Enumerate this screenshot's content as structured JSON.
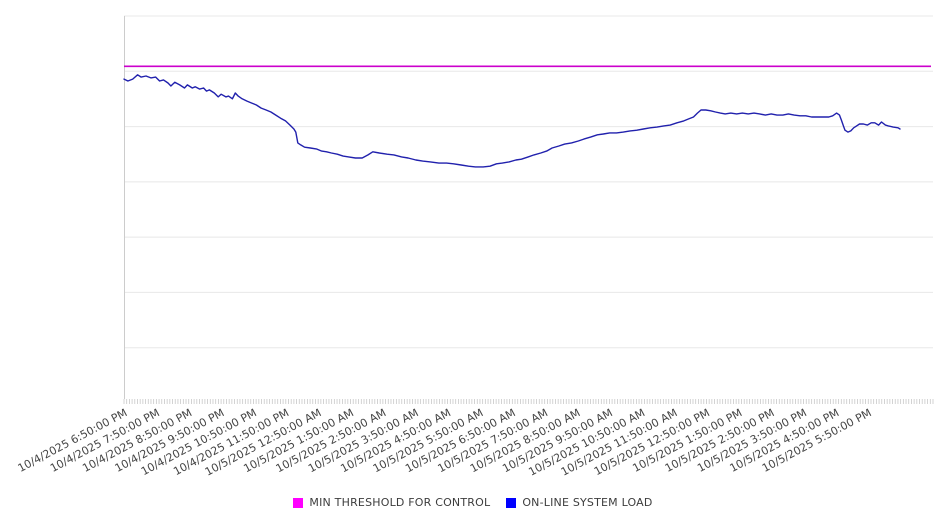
{
  "chart_data": {
    "type": "line",
    "title": "",
    "legend_position": "bottom-center",
    "grid": true,
    "x_axis": {
      "tick_labels": [
        "10/4/2025 6:50:00 PM",
        "10/4/2025 7:50:00 PM",
        "10/4/2025 8:50:00 PM",
        "10/4/2025 9:50:00 PM",
        "10/4/2025 10:50:00 PM",
        "10/4/2025 11:50:00 PM",
        "10/5/2025 12:50:00 AM",
        "10/5/2025 1:50:00 AM",
        "10/5/2025 2:50:00 AM",
        "10/5/2025 3:50:00 AM",
        "10/5/2025 4:50:00 AM",
        "10/5/2025 5:50:00 AM",
        "10/5/2025 6:50:00 AM",
        "10/5/2025 7:50:00 AM",
        "10/5/2025 8:50:00 AM",
        "10/5/2025 9:50:00 AM",
        "10/5/2025 10:50:00 AM",
        "10/5/2025 11:50:00 AM",
        "10/5/2025 12:50:00 PM",
        "10/5/2025 1:50:00 PM",
        "10/5/2025 2:50:00 PM",
        "10/5/2025 3:50:00 PM",
        "10/5/2025 4:50:00 PM",
        "10/5/2025 5:50:00 PM"
      ],
      "minor_ticks_between_labels": 12,
      "extra_unlabeled_hours_at_right": 1
    },
    "y_axis": {
      "tick_labels_visible": false,
      "scale_note": "y axis unlabeled; values given on relative 0-100 scale of plot height",
      "ylim": [
        0,
        100
      ],
      "horizontal_gridlines": 7
    },
    "series": [
      {
        "name": "MIN THRESHOLD FOR CONTROL",
        "type": "threshold",
        "value": 87.0,
        "line_color": "#cc00cc",
        "swatch_color": "#ff00ff"
      },
      {
        "name": "ON-LINE SYSTEM LOAD",
        "type": "line",
        "line_color": "#2121ad",
        "swatch_color": "#0000ff",
        "x_unit": "hours since 10/4/2025 6:50:00 PM",
        "points": [
          [
            0,
            83.7
          ],
          [
            0.12,
            83.2
          ],
          [
            0.27,
            83.7
          ],
          [
            0.42,
            84.8
          ],
          [
            0.53,
            84.2
          ],
          [
            0.68,
            84.5
          ],
          [
            0.83,
            84.0
          ],
          [
            0.98,
            84.2
          ],
          [
            1.1,
            83.2
          ],
          [
            1.22,
            83.5
          ],
          [
            1.36,
            82.7
          ],
          [
            1.45,
            81.9
          ],
          [
            1.57,
            82.9
          ],
          [
            1.72,
            82.2
          ],
          [
            1.87,
            81.4
          ],
          [
            1.96,
            82.2
          ],
          [
            2.11,
            81.4
          ],
          [
            2.2,
            81.7
          ],
          [
            2.34,
            81.1
          ],
          [
            2.46,
            81.4
          ],
          [
            2.55,
            80.6
          ],
          [
            2.64,
            80.9
          ],
          [
            2.79,
            80.1
          ],
          [
            2.91,
            79.1
          ],
          [
            3.0,
            79.8
          ],
          [
            3.15,
            79.1
          ],
          [
            3.23,
            79.3
          ],
          [
            3.35,
            78.6
          ],
          [
            3.44,
            80.1
          ],
          [
            3.53,
            79.3
          ],
          [
            3.65,
            78.6
          ],
          [
            3.8,
            78.0
          ],
          [
            3.95,
            77.5
          ],
          [
            4.09,
            77.0
          ],
          [
            4.24,
            76.2
          ],
          [
            4.39,
            75.7
          ],
          [
            4.54,
            75.2
          ],
          [
            4.69,
            74.4
          ],
          [
            4.84,
            73.6
          ],
          [
            4.99,
            72.9
          ],
          [
            5.13,
            71.8
          ],
          [
            5.25,
            70.8
          ],
          [
            5.31,
            70.0
          ],
          [
            5.37,
            67.2
          ],
          [
            5.46,
            66.7
          ],
          [
            5.58,
            66.1
          ],
          [
            5.76,
            65.9
          ],
          [
            5.96,
            65.6
          ],
          [
            6.11,
            65.1
          ],
          [
            6.26,
            64.9
          ],
          [
            6.41,
            64.6
          ],
          [
            6.59,
            64.3
          ],
          [
            6.77,
            63.8
          ],
          [
            6.94,
            63.6
          ],
          [
            7.15,
            63.3
          ],
          [
            7.36,
            63.3
          ],
          [
            7.54,
            64.1
          ],
          [
            7.69,
            64.9
          ],
          [
            7.89,
            64.6
          ],
          [
            8.13,
            64.3
          ],
          [
            8.34,
            64.1
          ],
          [
            8.58,
            63.6
          ],
          [
            8.78,
            63.3
          ],
          [
            9.02,
            62.8
          ],
          [
            9.23,
            62.5
          ],
          [
            9.47,
            62.3
          ],
          [
            9.73,
            62.0
          ],
          [
            9.97,
            62.0
          ],
          [
            10.18,
            61.8
          ],
          [
            10.42,
            61.5
          ],
          [
            10.65,
            61.2
          ],
          [
            10.86,
            61.0
          ],
          [
            11.1,
            61.0
          ],
          [
            11.31,
            61.2
          ],
          [
            11.51,
            61.8
          ],
          [
            11.69,
            62.0
          ],
          [
            11.9,
            62.3
          ],
          [
            12.11,
            62.8
          ],
          [
            12.28,
            63.0
          ],
          [
            12.49,
            63.6
          ],
          [
            12.67,
            64.1
          ],
          [
            12.88,
            64.6
          ],
          [
            13.06,
            65.1
          ],
          [
            13.23,
            65.9
          ],
          [
            13.44,
            66.4
          ],
          [
            13.62,
            66.9
          ],
          [
            13.83,
            67.2
          ],
          [
            14.04,
            67.7
          ],
          [
            14.21,
            68.2
          ],
          [
            14.42,
            68.7
          ],
          [
            14.63,
            69.3
          ],
          [
            14.81,
            69.5
          ],
          [
            15.01,
            69.8
          ],
          [
            15.22,
            69.8
          ],
          [
            15.43,
            70.0
          ],
          [
            15.64,
            70.3
          ],
          [
            15.85,
            70.5
          ],
          [
            16.05,
            70.8
          ],
          [
            16.26,
            71.1
          ],
          [
            16.47,
            71.3
          ],
          [
            16.68,
            71.6
          ],
          [
            16.88,
            71.8
          ],
          [
            17.09,
            72.4
          ],
          [
            17.3,
            72.9
          ],
          [
            17.45,
            73.4
          ],
          [
            17.6,
            73.9
          ],
          [
            17.72,
            74.9
          ],
          [
            17.83,
            75.7
          ],
          [
            17.98,
            75.7
          ],
          [
            18.13,
            75.5
          ],
          [
            18.28,
            75.2
          ],
          [
            18.43,
            74.9
          ],
          [
            18.58,
            74.7
          ],
          [
            18.75,
            74.9
          ],
          [
            18.93,
            74.7
          ],
          [
            19.11,
            74.9
          ],
          [
            19.29,
            74.7
          ],
          [
            19.47,
            74.9
          ],
          [
            19.64,
            74.7
          ],
          [
            19.82,
            74.4
          ],
          [
            20.0,
            74.7
          ],
          [
            20.18,
            74.4
          ],
          [
            20.36,
            74.4
          ],
          [
            20.53,
            74.7
          ],
          [
            20.71,
            74.4
          ],
          [
            20.89,
            74.2
          ],
          [
            21.07,
            74.2
          ],
          [
            21.25,
            73.9
          ],
          [
            21.42,
            73.9
          ],
          [
            21.6,
            73.9
          ],
          [
            21.78,
            73.9
          ],
          [
            21.9,
            74.2
          ],
          [
            22.02,
            74.9
          ],
          [
            22.11,
            74.4
          ],
          [
            22.17,
            73.1
          ],
          [
            22.23,
            71.6
          ],
          [
            22.28,
            70.5
          ],
          [
            22.37,
            70.0
          ],
          [
            22.46,
            70.3
          ],
          [
            22.55,
            71.1
          ],
          [
            22.64,
            71.6
          ],
          [
            22.73,
            72.1
          ],
          [
            22.85,
            72.1
          ],
          [
            22.97,
            71.8
          ],
          [
            23.09,
            72.4
          ],
          [
            23.2,
            72.4
          ],
          [
            23.32,
            71.8
          ],
          [
            23.41,
            72.6
          ],
          [
            23.53,
            71.8
          ],
          [
            23.62,
            71.6
          ],
          [
            23.77,
            71.3
          ],
          [
            23.92,
            71.1
          ],
          [
            23.98,
            70.8
          ]
        ]
      }
    ]
  },
  "colors": {
    "gridline": "#e8e8e8",
    "axis_line": "#cccccc",
    "minor_tick": "#c8c8c8",
    "tick_label": "#444444",
    "background": "#ffffff"
  }
}
